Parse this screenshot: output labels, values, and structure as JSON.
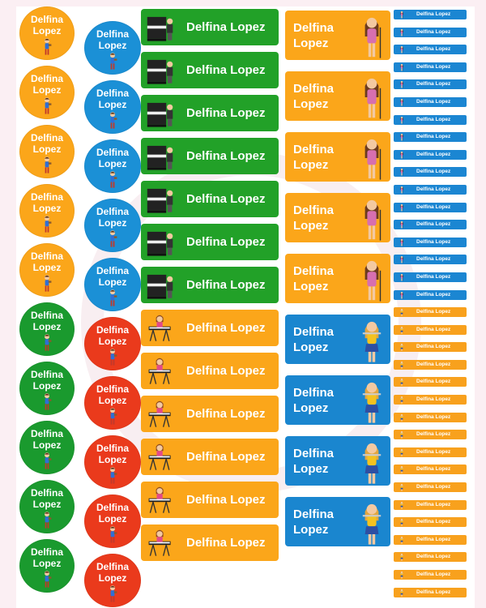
{
  "name_single": "Delfina Lopez",
  "name_first": "Delfina",
  "name_last": "Lopez",
  "colors": {
    "orange": "#fba61a",
    "blue": "#1b90d6",
    "green": "#1a9a2e",
    "red": "#ea3a1c",
    "rect_green": "#22a128",
    "sheet_bg": "#ffffff",
    "page_bg": "#fbeff3"
  },
  "icons": {
    "circle_figure": "child-musician-icon",
    "piano": "piano-player-icon",
    "keyboard": "keyboard-player-icon",
    "singer": "singer-girl-icon",
    "flute": "flute-girl-icon"
  },
  "counts": {
    "circles_per_column": 10,
    "rect_labels": 13,
    "big_labels": 9,
    "small_labels": 34
  }
}
